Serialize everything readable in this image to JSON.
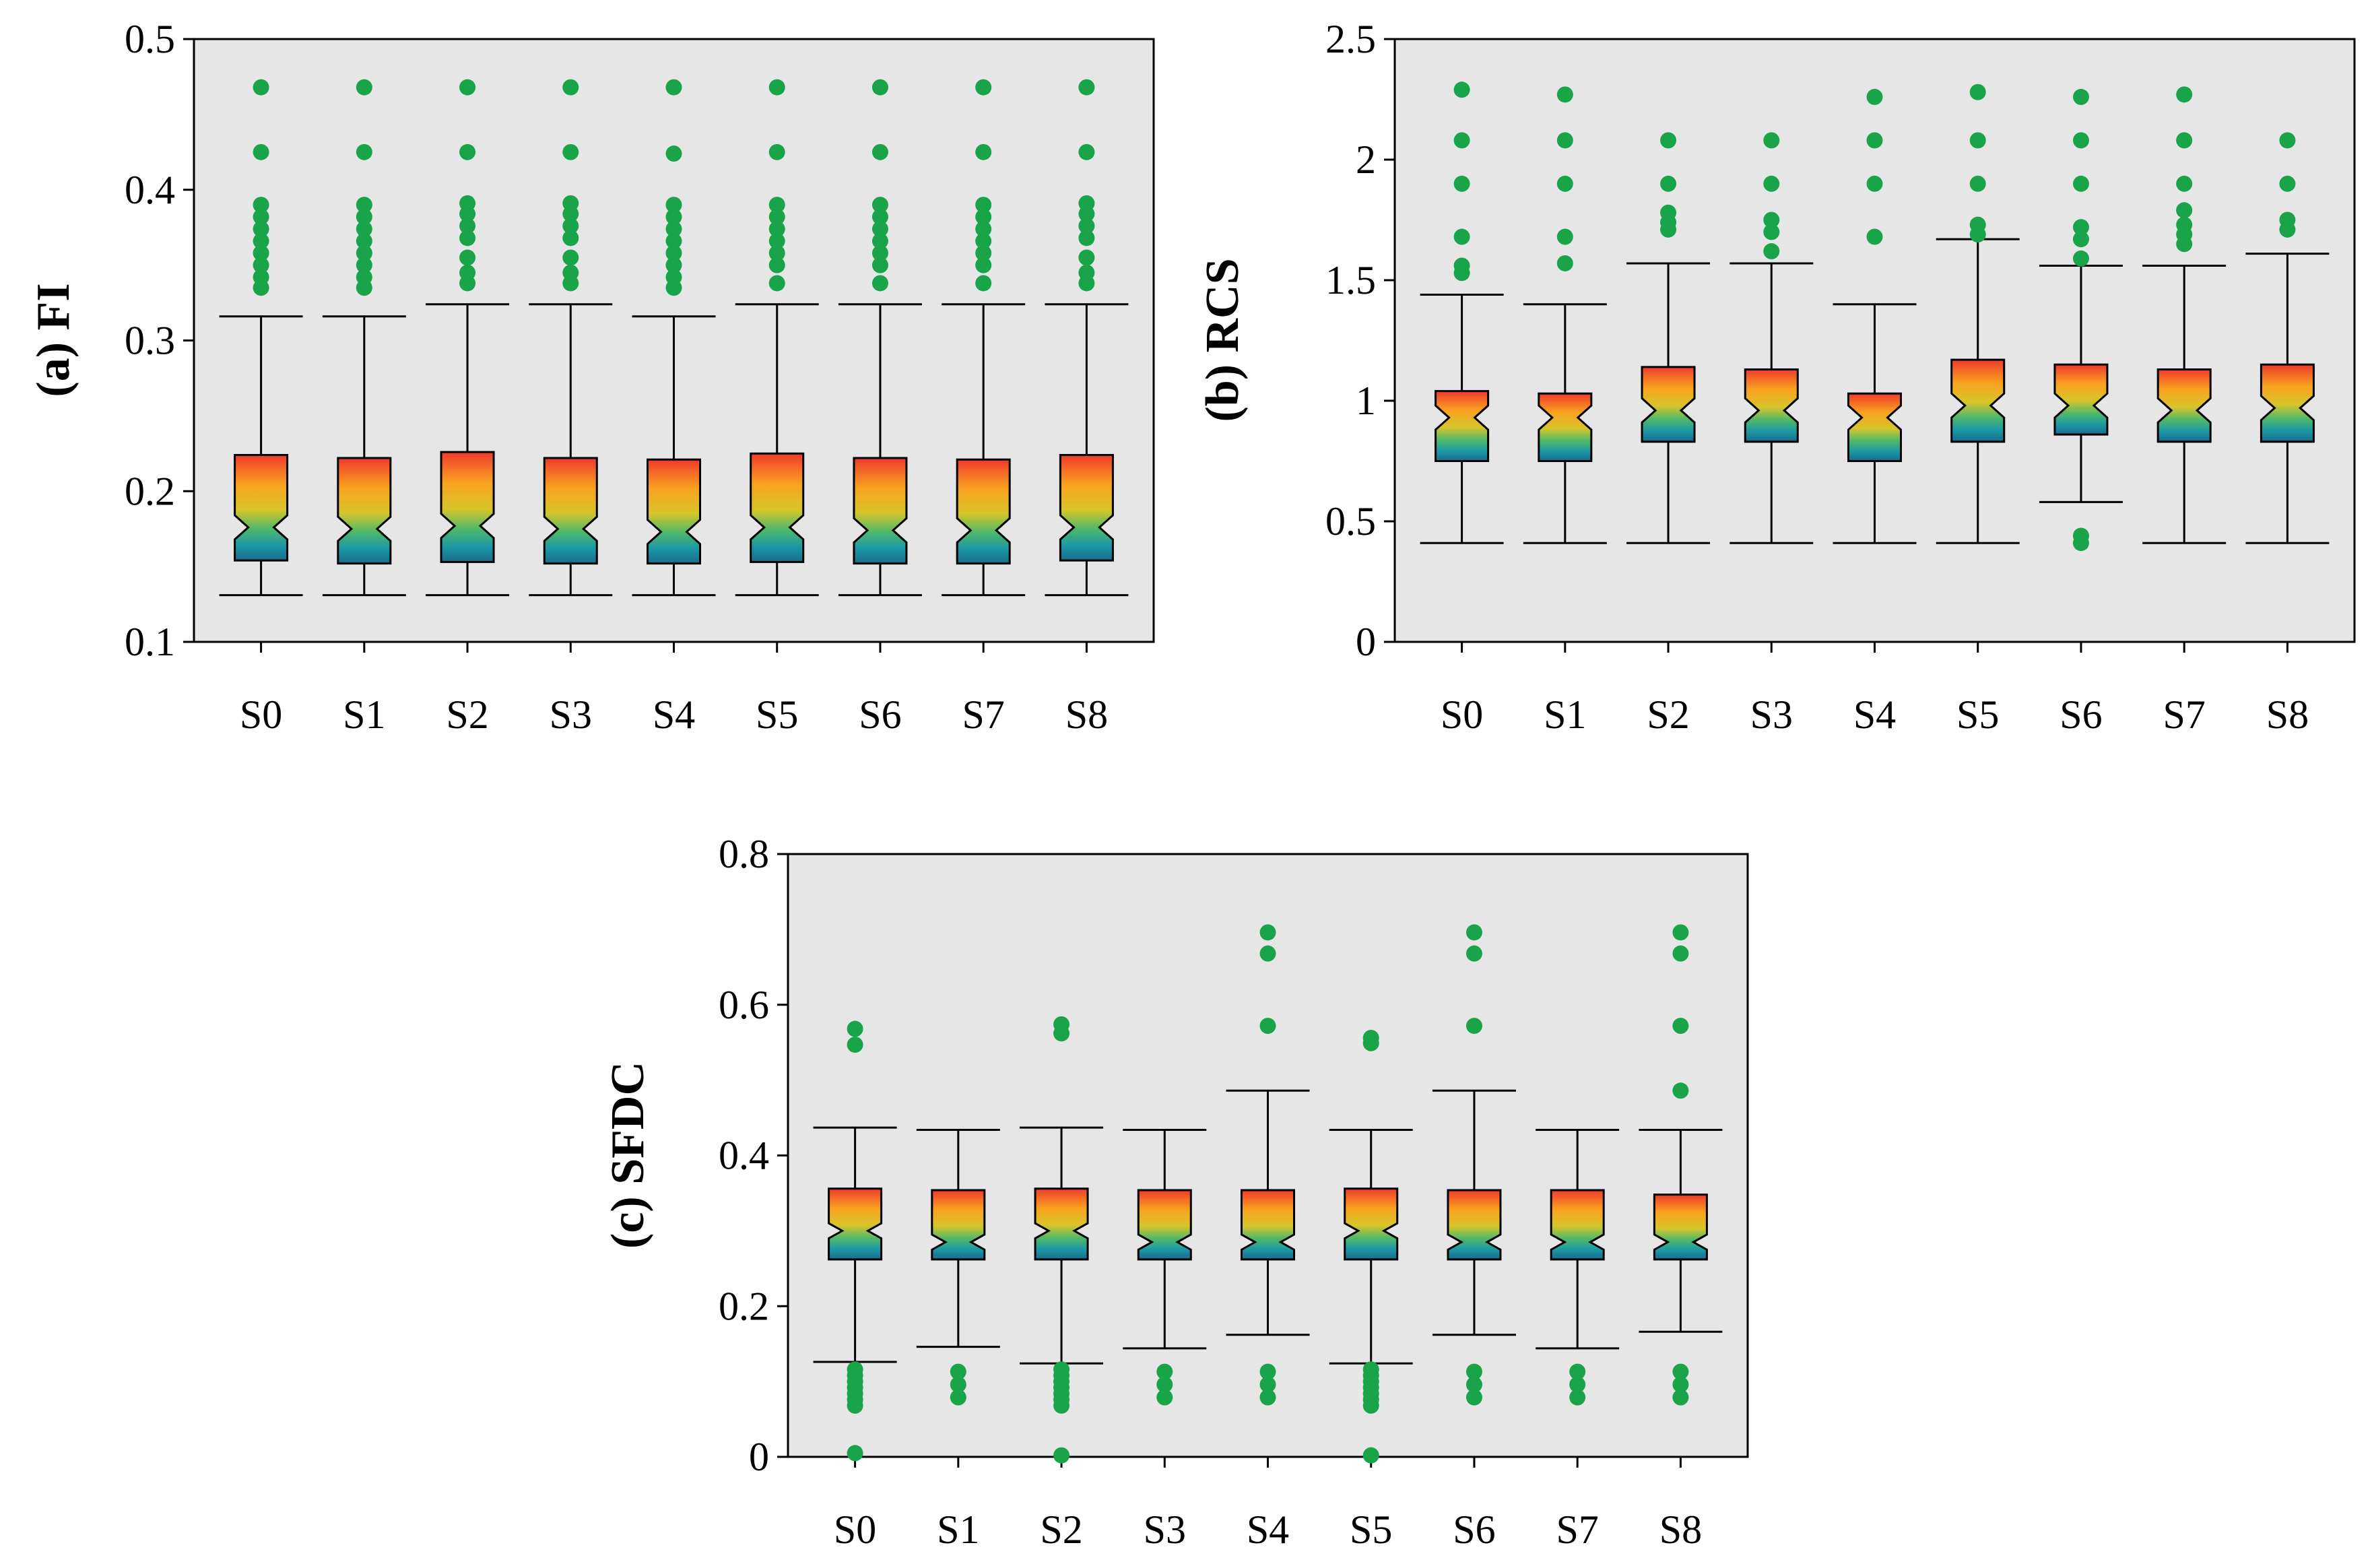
{
  "chart_data": [
    {
      "type": "boxplot",
      "ylabel": "(a) FI",
      "ylim": [
        0.1,
        0.5
      ],
      "yticks": [
        "0.1",
        "0.2",
        "0.3",
        "0.4",
        "0.5"
      ],
      "categories": [
        "S0",
        "S1",
        "S2",
        "S3",
        "S4",
        "S5",
        "S6",
        "S7",
        "S8"
      ],
      "notched": true,
      "grid": false,
      "background": "#e6e6e6",
      "boxes": [
        {
          "lw": 0.131,
          "q1": 0.154,
          "med": 0.176,
          "q3": 0.224,
          "uw": 0.316,
          "notch": [
            0.168,
            0.184
          ],
          "outliers": [
            0.335,
            0.342,
            0.35,
            0.358,
            0.366,
            0.374,
            0.382,
            0.39,
            0.425,
            0.468
          ]
        },
        {
          "lw": 0.131,
          "q1": 0.152,
          "med": 0.175,
          "q3": 0.222,
          "uw": 0.316,
          "notch": [
            0.167,
            0.183
          ],
          "outliers": [
            0.335,
            0.342,
            0.35,
            0.358,
            0.366,
            0.374,
            0.382,
            0.39,
            0.425,
            0.468
          ]
        },
        {
          "lw": 0.131,
          "q1": 0.153,
          "med": 0.177,
          "q3": 0.226,
          "uw": 0.324,
          "notch": [
            0.169,
            0.185
          ],
          "outliers": [
            0.338,
            0.345,
            0.355,
            0.368,
            0.376,
            0.384,
            0.391,
            0.425,
            0.468
          ]
        },
        {
          "lw": 0.131,
          "q1": 0.152,
          "med": 0.175,
          "q3": 0.222,
          "uw": 0.324,
          "notch": [
            0.167,
            0.183
          ],
          "outliers": [
            0.338,
            0.345,
            0.355,
            0.368,
            0.376,
            0.384,
            0.391,
            0.425,
            0.468
          ]
        },
        {
          "lw": 0.131,
          "q1": 0.152,
          "med": 0.173,
          "q3": 0.221,
          "uw": 0.316,
          "notch": [
            0.165,
            0.181
          ],
          "outliers": [
            0.335,
            0.342,
            0.35,
            0.358,
            0.366,
            0.374,
            0.382,
            0.39,
            0.424,
            0.468
          ]
        },
        {
          "lw": 0.131,
          "q1": 0.153,
          "med": 0.176,
          "q3": 0.225,
          "uw": 0.324,
          "notch": [
            0.168,
            0.184
          ],
          "outliers": [
            0.338,
            0.35,
            0.358,
            0.366,
            0.374,
            0.382,
            0.39,
            0.425,
            0.468
          ]
        },
        {
          "lw": 0.131,
          "q1": 0.152,
          "med": 0.174,
          "q3": 0.222,
          "uw": 0.324,
          "notch": [
            0.166,
            0.182
          ],
          "outliers": [
            0.338,
            0.35,
            0.358,
            0.366,
            0.374,
            0.382,
            0.39,
            0.425,
            0.468
          ]
        },
        {
          "lw": 0.131,
          "q1": 0.152,
          "med": 0.174,
          "q3": 0.221,
          "uw": 0.324,
          "notch": [
            0.166,
            0.182
          ],
          "outliers": [
            0.338,
            0.35,
            0.358,
            0.366,
            0.374,
            0.382,
            0.39,
            0.425,
            0.468
          ]
        },
        {
          "lw": 0.131,
          "q1": 0.154,
          "med": 0.176,
          "q3": 0.224,
          "uw": 0.324,
          "notch": [
            0.168,
            0.184
          ],
          "outliers": [
            0.338,
            0.345,
            0.355,
            0.368,
            0.376,
            0.384,
            0.391,
            0.425,
            0.468
          ]
        }
      ]
    },
    {
      "type": "boxplot",
      "ylabel": "(b) RCS",
      "ylim": [
        0,
        2.5
      ],
      "yticks": [
        "0",
        "0.5",
        "1",
        "1.5",
        "2",
        "2.5"
      ],
      "categories": [
        "S0",
        "S1",
        "S2",
        "S3",
        "S4",
        "S5",
        "S6",
        "S7",
        "S8"
      ],
      "notched": true,
      "grid": false,
      "background": "#e6e6e6",
      "boxes": [
        {
          "lw": 0.41,
          "q1": 0.75,
          "med": 0.93,
          "q3": 1.04,
          "uw": 1.44,
          "notch": [
            0.88,
            0.98
          ],
          "outliers": [
            1.53,
            1.56,
            1.68,
            1.9,
            2.08,
            2.29
          ]
        },
        {
          "lw": 0.41,
          "q1": 0.75,
          "med": 0.93,
          "q3": 1.03,
          "uw": 1.4,
          "notch": [
            0.88,
            0.98
          ],
          "outliers": [
            1.57,
            1.68,
            1.9,
            2.08,
            2.27
          ]
        },
        {
          "lw": 0.41,
          "q1": 0.83,
          "med": 0.96,
          "q3": 1.14,
          "uw": 1.57,
          "notch": [
            0.91,
            1.01
          ],
          "outliers": [
            1.71,
            1.74,
            1.78,
            1.9,
            2.08
          ]
        },
        {
          "lw": 0.41,
          "q1": 0.83,
          "med": 0.96,
          "q3": 1.13,
          "uw": 1.57,
          "notch": [
            0.91,
            1.01
          ],
          "outliers": [
            1.62,
            1.7,
            1.75,
            1.9,
            2.08
          ]
        },
        {
          "lw": 0.41,
          "q1": 0.75,
          "med": 0.93,
          "q3": 1.03,
          "uw": 1.4,
          "notch": [
            0.88,
            0.98
          ],
          "outliers": [
            1.68,
            1.9,
            2.08,
            2.26
          ]
        },
        {
          "lw": 0.41,
          "q1": 0.83,
          "med": 0.98,
          "q3": 1.17,
          "uw": 1.67,
          "notch": [
            0.93,
            1.03
          ],
          "outliers": [
            1.69,
            1.73,
            1.9,
            2.08,
            2.28
          ]
        },
        {
          "lw": 0.58,
          "q1": 0.86,
          "med": 0.98,
          "q3": 1.15,
          "uw": 1.56,
          "notch": [
            0.93,
            1.03
          ],
          "outliers": [
            0.41,
            0.44,
            1.59,
            1.67,
            1.72,
            1.9,
            2.08,
            2.26
          ]
        },
        {
          "lw": 0.41,
          "q1": 0.83,
          "med": 0.96,
          "q3": 1.13,
          "uw": 1.56,
          "notch": [
            0.91,
            1.01
          ],
          "outliers": [
            1.65,
            1.69,
            1.73,
            1.79,
            1.9,
            2.08,
            2.27
          ]
        },
        {
          "lw": 0.41,
          "q1": 0.83,
          "med": 0.97,
          "q3": 1.15,
          "uw": 1.61,
          "notch": [
            0.92,
            1.02
          ],
          "outliers": [
            1.71,
            1.75,
            1.9,
            2.08
          ]
        }
      ]
    },
    {
      "type": "boxplot",
      "ylabel": "(c) SFDC",
      "ylim": [
        0,
        0.8
      ],
      "yticks": [
        "0",
        "0.2",
        "0.4",
        "0.6",
        "0.8"
      ],
      "categories": [
        "S0",
        "S1",
        "S2",
        "S3",
        "S4",
        "S5",
        "S6",
        "S7",
        "S8"
      ],
      "notched": true,
      "grid": false,
      "background": "#e6e6e6",
      "boxes": [
        {
          "lw": 0.126,
          "q1": 0.262,
          "med": 0.3,
          "q3": 0.356,
          "uw": 0.437,
          "notch": [
            0.29,
            0.31
          ],
          "outliers": [
            0.005,
            0.068,
            0.076,
            0.084,
            0.092,
            0.1,
            0.108,
            0.116,
            0.547,
            0.568
          ]
        },
        {
          "lw": 0.146,
          "q1": 0.262,
          "med": 0.285,
          "q3": 0.354,
          "uw": 0.434,
          "notch": [
            0.275,
            0.295
          ],
          "outliers": [
            0.079,
            0.096,
            0.113
          ]
        },
        {
          "lw": 0.124,
          "q1": 0.262,
          "med": 0.3,
          "q3": 0.356,
          "uw": 0.437,
          "notch": [
            0.29,
            0.31
          ],
          "outliers": [
            0.002,
            0.068,
            0.076,
            0.084,
            0.092,
            0.1,
            0.108,
            0.116,
            0.562,
            0.574
          ]
        },
        {
          "lw": 0.144,
          "q1": 0.262,
          "med": 0.285,
          "q3": 0.354,
          "uw": 0.434,
          "notch": [
            0.275,
            0.295
          ],
          "outliers": [
            0.079,
            0.096,
            0.113
          ]
        },
        {
          "lw": 0.162,
          "q1": 0.262,
          "med": 0.285,
          "q3": 0.354,
          "uw": 0.486,
          "notch": [
            0.275,
            0.295
          ],
          "outliers": [
            0.079,
            0.096,
            0.113,
            0.572,
            0.668,
            0.696
          ]
        },
        {
          "lw": 0.124,
          "q1": 0.262,
          "med": 0.3,
          "q3": 0.356,
          "uw": 0.434,
          "notch": [
            0.29,
            0.31
          ],
          "outliers": [
            0.002,
            0.068,
            0.076,
            0.084,
            0.092,
            0.1,
            0.108,
            0.116,
            0.549,
            0.556
          ]
        },
        {
          "lw": 0.162,
          "q1": 0.262,
          "med": 0.285,
          "q3": 0.354,
          "uw": 0.486,
          "notch": [
            0.275,
            0.295
          ],
          "outliers": [
            0.079,
            0.096,
            0.113,
            0.572,
            0.668,
            0.696
          ]
        },
        {
          "lw": 0.144,
          "q1": 0.262,
          "med": 0.285,
          "q3": 0.354,
          "uw": 0.434,
          "notch": [
            0.275,
            0.295
          ],
          "outliers": [
            0.079,
            0.096,
            0.113
          ]
        },
        {
          "lw": 0.166,
          "q1": 0.262,
          "med": 0.285,
          "q3": 0.348,
          "uw": 0.434,
          "notch": [
            0.275,
            0.295
          ],
          "outliers": [
            0.079,
            0.096,
            0.113,
            0.486,
            0.572,
            0.668,
            0.696
          ]
        }
      ]
    }
  ],
  "colors": {
    "outlier": "#1aa44a",
    "panel_background": "#e6e6e6",
    "box_gradient": [
      "#ef3a2c",
      "#f9a21f",
      "#d7c52a",
      "#4fb86a",
      "#1a98a6",
      "#1a6a8a"
    ]
  }
}
